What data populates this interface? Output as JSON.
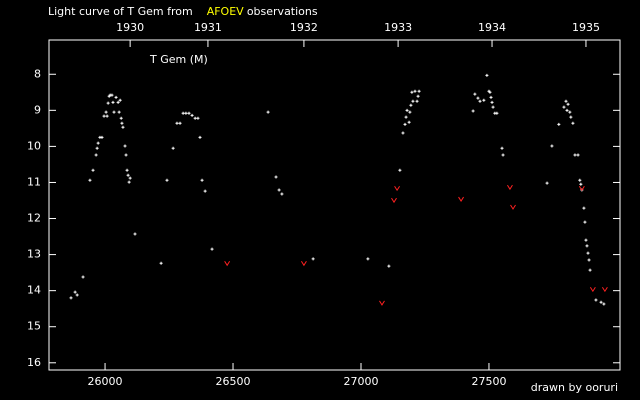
{
  "chart_data": {
    "type": "scatter",
    "title": "Light curve of T Gem from",
    "title_source": "AFOEV",
    "title_end": "observations",
    "title_source_color": "#ffff00",
    "annotation": "T Gem (M)",
    "credit": "drawn by ooruri",
    "credit_color": "#00cccc",
    "background": "#000000",
    "axis_color": "#ffffff",
    "xlim": [
      25781,
      28012
    ],
    "xticks": [
      26000,
      26500,
      27000,
      27500
    ],
    "x2ticks": [
      {
        "value": 26098,
        "label": "1930"
      },
      {
        "value": 26402,
        "label": "1931"
      },
      {
        "value": 26777,
        "label": "1932"
      },
      {
        "value": 27145,
        "label": "1933"
      },
      {
        "value": 27512,
        "label": "1934"
      },
      {
        "value": 27879,
        "label": "1935"
      }
    ],
    "ylim": [
      16.2,
      7.05
    ],
    "yticks": [
      8,
      9,
      10,
      11,
      12,
      13,
      14,
      15,
      16
    ],
    "series": [
      {
        "color": "#ffffff",
        "marker": "plus",
        "x": [
          25867,
          25883,
          25891,
          25914,
          25941,
          25953,
          25965,
          25969,
          25973,
          25980,
          25988,
          25996,
          26004,
          26008,
          26012,
          26016,
          26020,
          26027,
          26031,
          26035,
          26043,
          26051,
          26055,
          26059,
          26063,
          26066,
          26070,
          26078,
          26082,
          26086,
          26090,
          26094,
          26098,
          26117,
          26219,
          26242,
          26266,
          26281,
          26293,
          26305,
          26316,
          26328,
          26340,
          26352,
          26363,
          26371,
          26379,
          26391,
          26418,
          26637,
          26668,
          26680,
          26691,
          26813,
          27027,
          27109,
          27152,
          27164,
          27172,
          27176,
          27180,
          27188,
          27191,
          27195,
          27199,
          27203,
          27211,
          27219,
          27223,
          27227,
          27438,
          27445,
          27457,
          27465,
          27480,
          27492,
          27500,
          27504,
          27508,
          27512,
          27516,
          27523,
          27531,
          27551,
          27555,
          27727,
          27746,
          27773,
          27793,
          27801,
          27805,
          27809,
          27816,
          27820,
          27828,
          27836,
          27848,
          27855,
          27859,
          27863,
          27871,
          27875,
          27879,
          27883,
          27887,
          27891,
          27895,
          27918,
          27938,
          27949
        ],
        "values": [
          14.2,
          14.04,
          14.12,
          13.62,
          10.94,
          10.66,
          10.24,
          10.05,
          9.91,
          9.75,
          9.75,
          9.16,
          9.05,
          9.16,
          8.8,
          8.61,
          8.58,
          8.58,
          8.78,
          9.05,
          8.64,
          8.78,
          9.05,
          8.72,
          9.22,
          9.36,
          9.47,
          9.99,
          10.24,
          10.66,
          10.8,
          10.99,
          10.88,
          12.43,
          13.24,
          10.94,
          10.05,
          9.36,
          9.36,
          9.08,
          9.08,
          9.08,
          9.14,
          9.22,
          9.22,
          9.75,
          10.94,
          11.24,
          12.85,
          9.05,
          10.85,
          11.21,
          11.32,
          13.12,
          13.12,
          13.32,
          10.66,
          9.63,
          9.39,
          9.19,
          9.0,
          9.33,
          9.05,
          8.86,
          8.5,
          8.75,
          8.47,
          8.75,
          8.61,
          8.47,
          9.02,
          8.55,
          8.66,
          8.75,
          8.72,
          8.03,
          8.47,
          8.5,
          8.64,
          8.78,
          8.91,
          9.08,
          9.08,
          10.05,
          10.24,
          11.02,
          9.99,
          9.39,
          8.91,
          8.75,
          9.0,
          8.83,
          9.05,
          9.19,
          9.36,
          10.24,
          10.24,
          10.94,
          11.05,
          11.21,
          11.71,
          12.1,
          12.6,
          12.76,
          12.96,
          13.15,
          13.43,
          14.26,
          14.32,
          14.37
        ]
      },
      {
        "color": "#ff2020",
        "marker": "v",
        "x": [
          26477,
          26777,
          27082,
          27129,
          27141,
          27391,
          27582,
          27594,
          27863,
          27906,
          27953
        ],
        "values": [
          13.24,
          13.24,
          14.34,
          11.49,
          11.16,
          11.46,
          11.13,
          11.68,
          11.16,
          13.96,
          13.96
        ]
      }
    ]
  }
}
